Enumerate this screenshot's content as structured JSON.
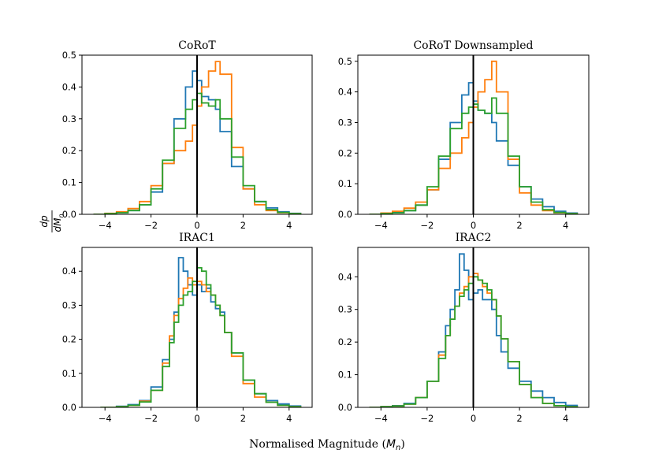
{
  "figure": {
    "xlabel_text": "Normalised Magnitude (",
    "xlabel_symbol": "M",
    "xlabel_subscript": "n",
    "xlabel_close": ")",
    "ylabel_numerator": "dp",
    "ylabel_denominator": "dM",
    "ylabel_subscript": "n"
  },
  "colors": {
    "series": [
      "#1f77b4",
      "#ff7f0e",
      "#2ca02c"
    ],
    "zero_line": "#000000"
  },
  "chart_data": [
    {
      "type": "histogram-step",
      "title": "CoRoT",
      "xlim": [
        -5,
        5
      ],
      "ylim": [
        0,
        0.5
      ],
      "xticks": [
        -4,
        -2,
        0,
        2,
        4
      ],
      "xtick_labels": [
        "−4",
        "−2",
        "0",
        "2",
        "4"
      ],
      "yticks": [
        0.0,
        0.1,
        0.2,
        0.3,
        0.4,
        0.5
      ],
      "ytick_labels": [
        "0.0",
        "0.1",
        "0.2",
        "0.3",
        "0.4",
        "0.5"
      ],
      "vline_x": 0,
      "series": [
        {
          "name": "series-blue",
          "x": [
            -4.5,
            -4.0,
            -3.5,
            -3.0,
            -2.5,
            -2.0,
            -1.5,
            -1.0,
            -0.5,
            -0.2,
            0.0,
            0.2,
            0.5,
            0.8,
            1.0,
            1.5,
            2.0,
            2.5,
            3.0,
            3.5,
            4.0,
            4.5
          ],
          "y": [
            0.0,
            0.002,
            0.005,
            0.012,
            0.03,
            0.07,
            0.16,
            0.3,
            0.4,
            0.45,
            0.42,
            0.37,
            0.36,
            0.33,
            0.26,
            0.15,
            0.08,
            0.04,
            0.02,
            0.008,
            0.003,
            0.0
          ]
        },
        {
          "name": "series-orange",
          "x": [
            -4.5,
            -4.0,
            -3.5,
            -3.0,
            -2.5,
            -2.0,
            -1.5,
            -1.0,
            -0.5,
            -0.2,
            0.0,
            0.2,
            0.5,
            0.8,
            1.0,
            1.5,
            2.0,
            2.5,
            3.0,
            3.5,
            4.0,
            4.5
          ],
          "y": [
            0.0,
            0.003,
            0.008,
            0.018,
            0.04,
            0.09,
            0.16,
            0.2,
            0.23,
            0.28,
            0.34,
            0.4,
            0.45,
            0.48,
            0.44,
            0.21,
            0.08,
            0.03,
            0.012,
            0.005,
            0.002,
            0.0
          ]
        },
        {
          "name": "series-green",
          "x": [
            -4.5,
            -4.0,
            -3.5,
            -3.0,
            -2.5,
            -2.0,
            -1.5,
            -1.0,
            -0.5,
            -0.2,
            0.0,
            0.2,
            0.5,
            0.8,
            1.0,
            1.5,
            2.0,
            2.5,
            3.0,
            3.5,
            4.0,
            4.5
          ],
          "y": [
            0.0,
            0.002,
            0.005,
            0.012,
            0.03,
            0.08,
            0.17,
            0.27,
            0.33,
            0.36,
            0.38,
            0.35,
            0.34,
            0.36,
            0.3,
            0.18,
            0.09,
            0.04,
            0.015,
            0.006,
            0.002,
            0.0
          ]
        }
      ]
    },
    {
      "type": "histogram-step",
      "title": "CoRoT Downsampled",
      "xlim": [
        -5,
        5
      ],
      "ylim": [
        0,
        0.52
      ],
      "xticks": [
        -4,
        -2,
        0,
        2,
        4
      ],
      "xtick_labels": [
        "−4",
        "−2",
        "0",
        "2",
        "4"
      ],
      "yticks": [
        0.0,
        0.1,
        0.2,
        0.3,
        0.4,
        0.5
      ],
      "ytick_labels": [
        "0.0",
        "0.1",
        "0.2",
        "0.3",
        "0.4",
        "0.5"
      ],
      "vline_x": 0,
      "series": [
        {
          "name": "series-blue",
          "x": [
            -4.5,
            -4.0,
            -3.5,
            -3.0,
            -2.5,
            -2.0,
            -1.5,
            -1.0,
            -0.5,
            -0.2,
            0.0,
            0.2,
            0.5,
            0.8,
            1.0,
            1.5,
            2.0,
            2.5,
            3.0,
            3.5,
            4.0,
            4.5
          ],
          "y": [
            0.0,
            0.003,
            0.006,
            0.012,
            0.03,
            0.08,
            0.18,
            0.3,
            0.39,
            0.43,
            0.37,
            0.34,
            0.33,
            0.3,
            0.24,
            0.16,
            0.09,
            0.05,
            0.025,
            0.01,
            0.004,
            0.0
          ]
        },
        {
          "name": "series-orange",
          "x": [
            -4.5,
            -4.0,
            -3.5,
            -3.0,
            -2.5,
            -2.0,
            -1.5,
            -1.0,
            -0.5,
            -0.2,
            0.0,
            0.2,
            0.5,
            0.8,
            1.0,
            1.5,
            2.0,
            2.5,
            3.0,
            3.5,
            4.0,
            4.5
          ],
          "y": [
            0.0,
            0.004,
            0.01,
            0.02,
            0.04,
            0.08,
            0.15,
            0.2,
            0.25,
            0.3,
            0.35,
            0.4,
            0.44,
            0.5,
            0.4,
            0.18,
            0.07,
            0.03,
            0.012,
            0.005,
            0.002,
            0.0
          ]
        },
        {
          "name": "series-green",
          "x": [
            -4.5,
            -4.0,
            -3.5,
            -3.0,
            -2.5,
            -2.0,
            -1.5,
            -1.0,
            -0.5,
            -0.2,
            0.0,
            0.2,
            0.5,
            0.8,
            1.0,
            1.5,
            2.0,
            2.5,
            3.0,
            3.5,
            4.0,
            4.5
          ],
          "y": [
            0.0,
            0.002,
            0.005,
            0.012,
            0.03,
            0.09,
            0.19,
            0.28,
            0.33,
            0.35,
            0.36,
            0.34,
            0.33,
            0.38,
            0.33,
            0.19,
            0.09,
            0.04,
            0.015,
            0.006,
            0.002,
            0.0
          ]
        }
      ]
    },
    {
      "type": "histogram-step",
      "title": "IRAC1",
      "xlim": [
        -5,
        5
      ],
      "ylim": [
        0,
        0.47
      ],
      "xticks": [
        -4,
        -2,
        0,
        2,
        4
      ],
      "xtick_labels": [
        "−4",
        "−2",
        "0",
        "2",
        "4"
      ],
      "yticks": [
        0.0,
        0.1,
        0.2,
        0.3,
        0.4
      ],
      "ytick_labels": [
        "0.0",
        "0.1",
        "0.2",
        "0.3",
        "0.4"
      ],
      "vline_x": 0,
      "series": [
        {
          "name": "series-blue",
          "x": [
            -4.2,
            -3.5,
            -3.0,
            -2.5,
            -2.0,
            -1.5,
            -1.2,
            -1.0,
            -0.8,
            -0.6,
            -0.4,
            -0.2,
            0.0,
            0.2,
            0.4,
            0.6,
            0.8,
            1.0,
            1.2,
            1.5,
            2.0,
            2.5,
            3.0,
            3.5,
            4.0,
            4.5
          ],
          "y": [
            0.0,
            0.003,
            0.008,
            0.02,
            0.06,
            0.14,
            0.2,
            0.28,
            0.44,
            0.4,
            0.36,
            0.33,
            0.36,
            0.34,
            0.35,
            0.31,
            0.29,
            0.28,
            0.22,
            0.16,
            0.08,
            0.04,
            0.02,
            0.01,
            0.004,
            0.0
          ]
        },
        {
          "name": "series-orange",
          "x": [
            -4.2,
            -3.5,
            -3.0,
            -2.5,
            -2.0,
            -1.5,
            -1.2,
            -1.0,
            -0.8,
            -0.6,
            -0.4,
            -0.2,
            0.0,
            0.2,
            0.4,
            0.6,
            0.8,
            1.0,
            1.2,
            1.5,
            2.0,
            2.5,
            3.0,
            3.5,
            4.0,
            4.5
          ],
          "y": [
            0.0,
            0.002,
            0.006,
            0.018,
            0.05,
            0.13,
            0.21,
            0.27,
            0.32,
            0.35,
            0.38,
            0.36,
            0.37,
            0.36,
            0.34,
            0.33,
            0.3,
            0.27,
            0.22,
            0.15,
            0.07,
            0.03,
            0.015,
            0.006,
            0.002,
            0.0
          ]
        },
        {
          "name": "series-green",
          "x": [
            -4.2,
            -3.5,
            -3.0,
            -2.5,
            -2.0,
            -1.5,
            -1.2,
            -1.0,
            -0.8,
            -0.6,
            -0.4,
            -0.2,
            0.0,
            0.2,
            0.4,
            0.6,
            0.8,
            1.0,
            1.2,
            1.5,
            2.0,
            2.5,
            3.0,
            3.5,
            4.0,
            4.5
          ],
          "y": [
            0.0,
            0.002,
            0.006,
            0.016,
            0.05,
            0.12,
            0.19,
            0.25,
            0.3,
            0.33,
            0.34,
            0.37,
            0.41,
            0.4,
            0.36,
            0.33,
            0.3,
            0.27,
            0.22,
            0.16,
            0.08,
            0.04,
            0.015,
            0.006,
            0.002,
            0.0
          ]
        }
      ]
    },
    {
      "type": "histogram-step",
      "title": "IRAC2",
      "xlim": [
        -5,
        5
      ],
      "ylim": [
        0,
        0.49
      ],
      "xticks": [
        -4,
        -2,
        0,
        2,
        4
      ],
      "xtick_labels": [
        "−4",
        "−2",
        "0",
        "2",
        "4"
      ],
      "yticks": [
        0.0,
        0.1,
        0.2,
        0.3,
        0.4
      ],
      "ytick_labels": [
        "0.0",
        "0.1",
        "0.2",
        "0.3",
        "0.4"
      ],
      "vline_x": 0,
      "series": [
        {
          "name": "series-blue",
          "x": [
            -4.5,
            -4.0,
            -3.5,
            -3.0,
            -2.5,
            -2.0,
            -1.5,
            -1.2,
            -1.0,
            -0.8,
            -0.6,
            -0.4,
            -0.2,
            0.0,
            0.2,
            0.4,
            0.6,
            0.8,
            1.0,
            1.2,
            1.5,
            2.0,
            2.5,
            3.0,
            3.5,
            4.0,
            4.5
          ],
          "y": [
            0.0,
            0.002,
            0.005,
            0.012,
            0.03,
            0.08,
            0.17,
            0.25,
            0.3,
            0.36,
            0.47,
            0.42,
            0.33,
            0.35,
            0.36,
            0.33,
            0.33,
            0.3,
            0.22,
            0.17,
            0.12,
            0.08,
            0.05,
            0.03,
            0.015,
            0.006,
            0.0
          ]
        },
        {
          "name": "series-orange",
          "x": [
            -4.5,
            -4.0,
            -3.5,
            -3.0,
            -2.5,
            -2.0,
            -1.5,
            -1.2,
            -1.0,
            -0.8,
            -0.6,
            -0.4,
            -0.2,
            0.0,
            0.2,
            0.4,
            0.6,
            0.8,
            1.0,
            1.2,
            1.5,
            2.0,
            2.5,
            3.0,
            3.5,
            4.0,
            4.5
          ],
          "y": [
            0.0,
            0.002,
            0.004,
            0.01,
            0.03,
            0.08,
            0.16,
            0.22,
            0.27,
            0.31,
            0.35,
            0.37,
            0.4,
            0.41,
            0.39,
            0.37,
            0.35,
            0.33,
            0.28,
            0.21,
            0.14,
            0.07,
            0.03,
            0.012,
            0.005,
            0.002,
            0.0
          ]
        },
        {
          "name": "series-green",
          "x": [
            -4.5,
            -4.0,
            -3.5,
            -3.0,
            -2.5,
            -2.0,
            -1.5,
            -1.2,
            -1.0,
            -0.8,
            -0.6,
            -0.4,
            -0.2,
            0.0,
            0.2,
            0.4,
            0.6,
            0.8,
            1.0,
            1.2,
            1.5,
            2.0,
            2.5,
            3.0,
            3.5,
            4.0,
            4.5
          ],
          "y": [
            0.0,
            0.002,
            0.004,
            0.01,
            0.03,
            0.08,
            0.15,
            0.22,
            0.27,
            0.31,
            0.34,
            0.36,
            0.38,
            0.4,
            0.39,
            0.38,
            0.36,
            0.33,
            0.28,
            0.21,
            0.14,
            0.07,
            0.03,
            0.012,
            0.005,
            0.002,
            0.0
          ]
        }
      ]
    }
  ]
}
